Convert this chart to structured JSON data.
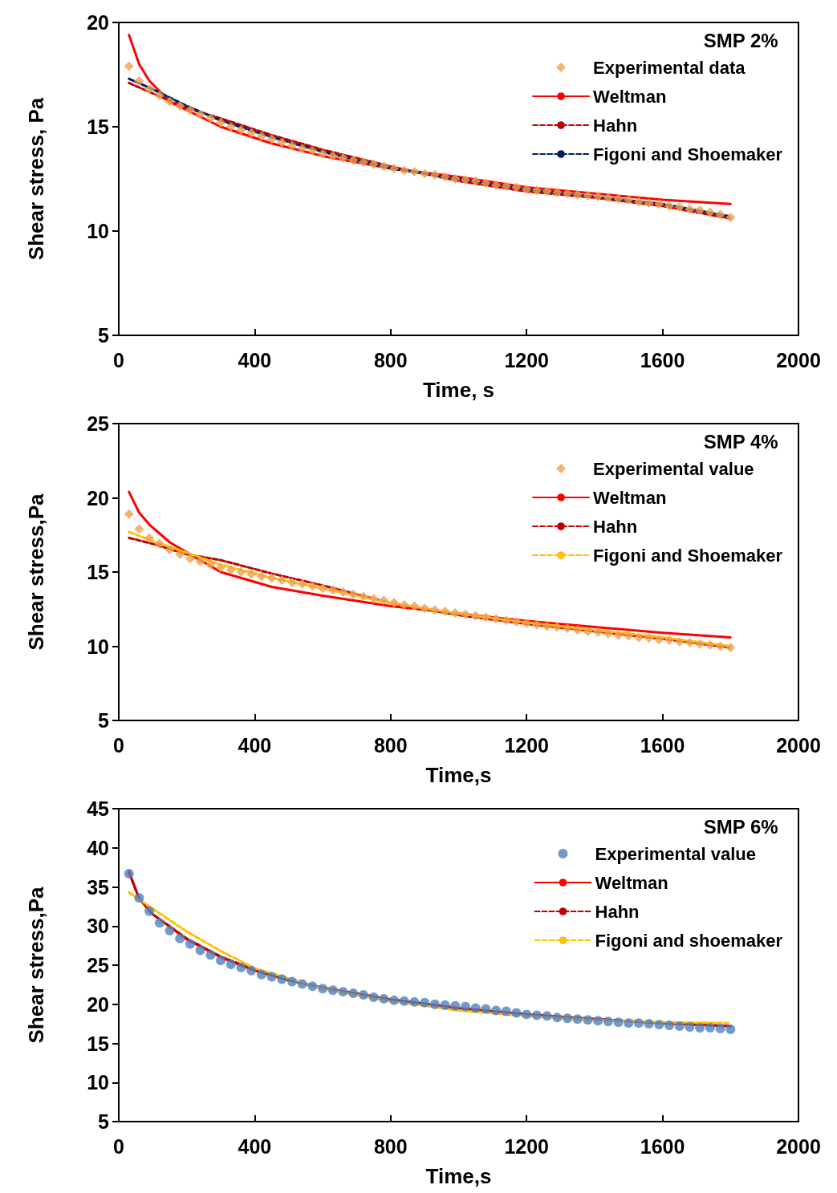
{
  "chart_data": [
    {
      "type": "line",
      "ylabel": "Shear stress, Pa",
      "xlabel": "Time, s",
      "legend_title": "SMP 2%",
      "xlim": [
        0,
        2000
      ],
      "xticks": [
        0,
        400,
        800,
        1200,
        1600,
        2000
      ],
      "ylim": [
        5,
        20
      ],
      "yticks": [
        5,
        10,
        15,
        20
      ],
      "grid": false,
      "legend": "top right",
      "series": [
        {
          "name": "Experimental data",
          "type": "scatter",
          "marker": "diamond",
          "color": "#f0a050",
          "x": [
            30,
            60,
            90,
            120,
            150,
            180,
            210,
            240,
            270,
            300,
            330,
            360,
            390,
            420,
            450,
            480,
            510,
            540,
            570,
            600,
            630,
            660,
            690,
            720,
            750,
            780,
            810,
            840,
            870,
            900,
            930,
            960,
            990,
            1020,
            1050,
            1080,
            1110,
            1140,
            1170,
            1200,
            1230,
            1260,
            1290,
            1320,
            1350,
            1380,
            1410,
            1440,
            1470,
            1500,
            1530,
            1560,
            1590,
            1620,
            1650,
            1680,
            1710,
            1740,
            1770,
            1800
          ],
          "values": [
            17.9,
            17.2,
            16.8,
            16.5,
            16.2,
            16.0,
            15.8,
            15.6,
            15.4,
            15.2,
            15.0,
            14.85,
            14.7,
            14.55,
            14.4,
            14.25,
            14.1,
            13.95,
            13.85,
            13.7,
            13.6,
            13.5,
            13.4,
            13.3,
            13.2,
            13.1,
            13.0,
            12.9,
            12.85,
            12.75,
            12.7,
            12.6,
            12.5,
            12.45,
            12.4,
            12.3,
            12.2,
            12.15,
            12.1,
            12.0,
            11.95,
            11.9,
            11.85,
            11.8,
            11.75,
            11.7,
            11.65,
            11.6,
            11.55,
            11.5,
            11.4,
            11.35,
            11.3,
            11.2,
            11.15,
            11.05,
            11.0,
            10.9,
            10.8,
            10.65
          ]
        },
        {
          "name": "Weltman",
          "color": "#ff0000",
          "line_style": "solid",
          "x": [
            30,
            60,
            90,
            150,
            300,
            450,
            600,
            800,
            1000,
            1200,
            1400,
            1600,
            1800
          ],
          "values": [
            19.4,
            18.0,
            17.2,
            16.2,
            15.0,
            14.2,
            13.6,
            13.0,
            12.6,
            12.1,
            11.8,
            11.5,
            11.3
          ]
        },
        {
          "name": "Hahn",
          "color": "#c00000",
          "line_style": "dashed",
          "x": [
            30,
            100,
            200,
            300,
            450,
            600,
            800,
            1000,
            1200,
            1400,
            1600,
            1800
          ],
          "values": [
            17.1,
            16.6,
            15.9,
            15.4,
            14.6,
            13.9,
            13.1,
            12.4,
            11.9,
            11.6,
            11.2,
            10.6
          ]
        },
        {
          "name": "Figoni and Shoemaker",
          "color": "#002060",
          "line_style": "dashed",
          "x": [
            30,
            100,
            200,
            300,
            450,
            600,
            800,
            1000,
            1200,
            1400,
            1600,
            1800
          ],
          "values": [
            17.3,
            16.8,
            16.0,
            15.3,
            14.5,
            13.8,
            13.0,
            12.5,
            12.0,
            11.65,
            11.3,
            10.7
          ]
        }
      ]
    },
    {
      "type": "line",
      "ylabel": "Shear stress,Pa",
      "xlabel": "Time,s",
      "legend_title": "SMP 4%",
      "xlim": [
        0,
        2000
      ],
      "xticks": [
        0,
        400,
        800,
        1200,
        1600,
        2000
      ],
      "ylim": [
        5,
        25
      ],
      "yticks": [
        5,
        10,
        15,
        20,
        25
      ],
      "grid": false,
      "legend": "top right",
      "series": [
        {
          "name": "Experimental value",
          "type": "scatter",
          "marker": "diamond",
          "color": "#f0a050",
          "x": [
            30,
            60,
            90,
            120,
            150,
            180,
            210,
            240,
            270,
            300,
            330,
            360,
            390,
            420,
            450,
            480,
            510,
            540,
            570,
            600,
            630,
            660,
            690,
            720,
            750,
            780,
            810,
            840,
            870,
            900,
            930,
            960,
            990,
            1020,
            1050,
            1080,
            1110,
            1140,
            1170,
            1200,
            1230,
            1260,
            1290,
            1320,
            1350,
            1380,
            1410,
            1440,
            1470,
            1500,
            1530,
            1560,
            1590,
            1620,
            1650,
            1680,
            1710,
            1740,
            1770,
            1800
          ],
          "values": [
            18.9,
            17.9,
            17.3,
            16.9,
            16.5,
            16.2,
            15.9,
            15.7,
            15.5,
            15.3,
            15.15,
            15.0,
            14.85,
            14.7,
            14.6,
            14.45,
            14.3,
            14.2,
            14.05,
            13.9,
            13.8,
            13.65,
            13.5,
            13.35,
            13.2,
            13.1,
            12.95,
            12.8,
            12.7,
            12.55,
            12.45,
            12.35,
            12.25,
            12.15,
            12.05,
            11.95,
            11.85,
            11.75,
            11.65,
            11.55,
            11.45,
            11.35,
            11.3,
            11.2,
            11.1,
            11.0,
            10.95,
            10.85,
            10.75,
            10.7,
            10.6,
            10.55,
            10.45,
            10.4,
            10.3,
            10.25,
            10.15,
            10.1,
            10.0,
            9.9
          ]
        },
        {
          "name": "Weltman",
          "color": "#ff0000",
          "line_style": "solid",
          "x": [
            30,
            60,
            90,
            150,
            300,
            450,
            600,
            800,
            1000,
            1200,
            1400,
            1600,
            1800
          ],
          "values": [
            20.4,
            19.0,
            18.2,
            17.0,
            15.0,
            14.0,
            13.4,
            12.7,
            12.2,
            11.7,
            11.3,
            10.9,
            10.6
          ]
        },
        {
          "name": "Hahn",
          "color": "#c00000",
          "line_style": "dashed",
          "x": [
            30,
            100,
            200,
            300,
            450,
            600,
            800,
            1000,
            1200,
            1400,
            1600,
            1800
          ],
          "values": [
            17.3,
            16.9,
            16.2,
            15.8,
            14.9,
            14.1,
            12.9,
            12.1,
            11.5,
            11.0,
            10.5,
            9.9
          ]
        },
        {
          "name": "Figoni and Shoemaker",
          "color": "#ffc000",
          "line_style": "dashed",
          "x": [
            30,
            100,
            200,
            300,
            450,
            600,
            800,
            1000,
            1200,
            1400,
            1600,
            1800
          ],
          "values": [
            17.7,
            17.1,
            16.3,
            15.5,
            14.6,
            13.9,
            12.9,
            12.2,
            11.6,
            11.1,
            10.6,
            10.0
          ]
        }
      ]
    },
    {
      "type": "line",
      "ylabel": "Shear stress,Pa",
      "xlabel": "Time,s",
      "legend_title": "SMP 6%",
      "xlim": [
        0,
        2000
      ],
      "xticks": [
        0,
        400,
        800,
        1200,
        1600,
        2000
      ],
      "ylim": [
        5,
        45
      ],
      "yticks": [
        5,
        10,
        15,
        20,
        25,
        30,
        35,
        40,
        45
      ],
      "grid": false,
      "legend": "top right",
      "series": [
        {
          "name": "Experimental value",
          "type": "scatter",
          "marker": "circle",
          "color": "#4f81bd",
          "x": [
            30,
            60,
            90,
            120,
            150,
            180,
            210,
            240,
            270,
            300,
            330,
            360,
            390,
            420,
            450,
            480,
            510,
            540,
            570,
            600,
            630,
            660,
            690,
            720,
            750,
            780,
            810,
            840,
            870,
            900,
            930,
            960,
            990,
            1020,
            1050,
            1080,
            1110,
            1140,
            1170,
            1200,
            1230,
            1260,
            1290,
            1320,
            1350,
            1380,
            1410,
            1440,
            1470,
            1500,
            1530,
            1560,
            1590,
            1620,
            1650,
            1680,
            1710,
            1740,
            1770,
            1800
          ],
          "values": [
            36.7,
            33.6,
            31.9,
            30.4,
            29.4,
            28.4,
            27.7,
            26.9,
            26.3,
            25.6,
            25.1,
            24.7,
            24.3,
            23.8,
            23.5,
            23.2,
            22.9,
            22.6,
            22.3,
            22.0,
            21.8,
            21.6,
            21.4,
            21.2,
            20.9,
            20.7,
            20.5,
            20.4,
            20.3,
            20.2,
            20.0,
            19.9,
            19.8,
            19.7,
            19.5,
            19.4,
            19.2,
            19.1,
            18.9,
            18.7,
            18.6,
            18.5,
            18.3,
            18.2,
            18.1,
            18.0,
            17.9,
            17.8,
            17.7,
            17.6,
            17.6,
            17.5,
            17.4,
            17.3,
            17.2,
            17.1,
            17.0,
            17.0,
            16.9,
            16.8
          ]
        },
        {
          "name": "Weltman",
          "color": "#ff0000",
          "line_style": "solid",
          "x": [
            30,
            60,
            100,
            200,
            300,
            400,
            500,
            600,
            800,
            1000,
            1200,
            1400,
            1600,
            1800
          ],
          "values": [
            37.0,
            33.5,
            31.5,
            28.3,
            26.0,
            24.3,
            23.1,
            22.1,
            20.6,
            19.5,
            18.7,
            18.1,
            17.6,
            17.2
          ]
        },
        {
          "name": "Hahn",
          "color": "#c00000",
          "line_style": "dashed",
          "x": [
            30,
            60,
            100,
            200,
            300,
            400,
            500,
            600,
            800,
            1000,
            1200,
            1400,
            1600,
            1800
          ],
          "values": [
            36.8,
            33.5,
            31.5,
            28.4,
            26.1,
            24.4,
            23.1,
            22.1,
            20.6,
            19.5,
            18.7,
            18.1,
            17.6,
            17.2
          ]
        },
        {
          "name": "Figoni and shoemaker",
          "color": "#ffc000",
          "line_style": "dashed",
          "x": [
            30,
            100,
            200,
            300,
            400,
            600,
            800,
            1000,
            1200,
            1400,
            1600,
            1800
          ],
          "values": [
            34.3,
            32.2,
            29.3,
            26.8,
            24.6,
            22.0,
            20.4,
            19.2,
            18.5,
            18.0,
            17.7,
            17.6
          ]
        }
      ]
    }
  ]
}
